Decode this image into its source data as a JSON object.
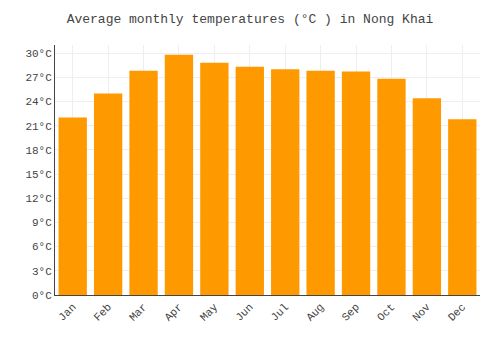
{
  "chart_data": {
    "type": "bar",
    "title": "Average monthly temperatures (°C ) in Nong Khai",
    "categories": [
      "Jan",
      "Feb",
      "Mar",
      "Apr",
      "May",
      "Jun",
      "Jul",
      "Aug",
      "Sep",
      "Oct",
      "Nov",
      "Dec"
    ],
    "values": [
      22.0,
      25.0,
      27.8,
      29.8,
      28.8,
      28.3,
      28.0,
      27.8,
      27.7,
      26.8,
      24.4,
      21.8
    ],
    "color": "#FF9900",
    "ylim": [
      0,
      31
    ],
    "yticks": [
      {
        "value": 0,
        "label": "0°C"
      },
      {
        "value": 3,
        "label": "3°C"
      },
      {
        "value": 6,
        "label": "6°C"
      },
      {
        "value": 9,
        "label": "9°C"
      },
      {
        "value": 12,
        "label": "12°C"
      },
      {
        "value": 15,
        "label": "15°C"
      },
      {
        "value": 18,
        "label": "18°C"
      },
      {
        "value": 21,
        "label": "21°C"
      },
      {
        "value": 24,
        "label": "24°C"
      },
      {
        "value": 27,
        "label": "27°C"
      },
      {
        "value": 30,
        "label": "30°C"
      }
    ],
    "grid": true
  }
}
